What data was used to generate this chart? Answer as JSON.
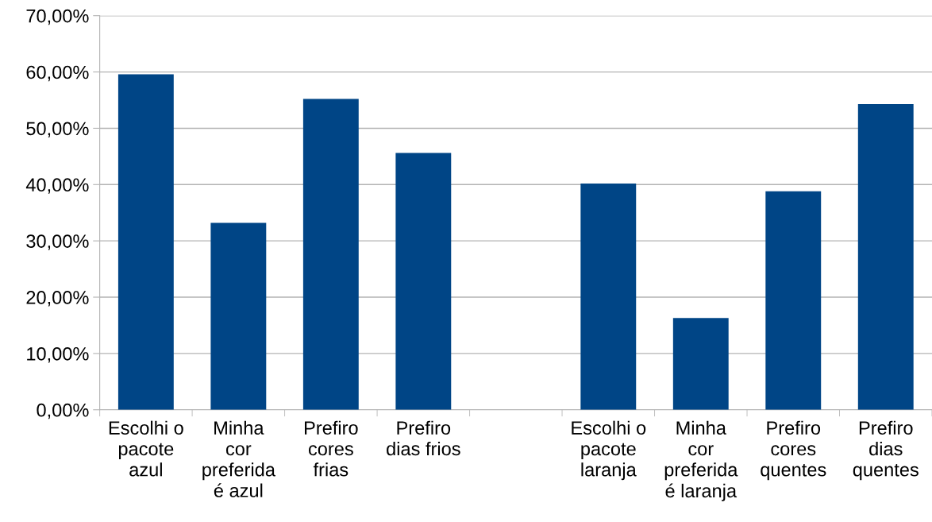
{
  "chart_data": {
    "type": "bar",
    "categories": [
      "Escolhi o\npacote\nazul",
      "Minha\ncor\npreferida\né azul",
      "Prefiro\ncores\nfrias",
      "Prefiro\ndias frios",
      null,
      "Escolhi o\npacote\nlaranja",
      "Minha\ncor\npreferida\né laranja",
      "Prefiro\ncores\nquentes",
      "Prefiro\ndias\nquentes"
    ],
    "values": [
      59.6,
      33.2,
      55.2,
      45.6,
      null,
      40.2,
      16.3,
      38.8,
      54.3
    ],
    "color": "#004586",
    "ylim": [
      0,
      70
    ],
    "yticks": [
      {
        "value": 0,
        "label": "0,00%"
      },
      {
        "value": 10,
        "label": "10,00%"
      },
      {
        "value": 20,
        "label": "20,00%"
      },
      {
        "value": 30,
        "label": "30,00%"
      },
      {
        "value": 40,
        "label": "40,00%"
      },
      {
        "value": 50,
        "label": "50,00%"
      },
      {
        "value": 60,
        "label": "60,00%"
      },
      {
        "value": 70,
        "label": "70,00%"
      }
    ],
    "grid": "y"
  }
}
